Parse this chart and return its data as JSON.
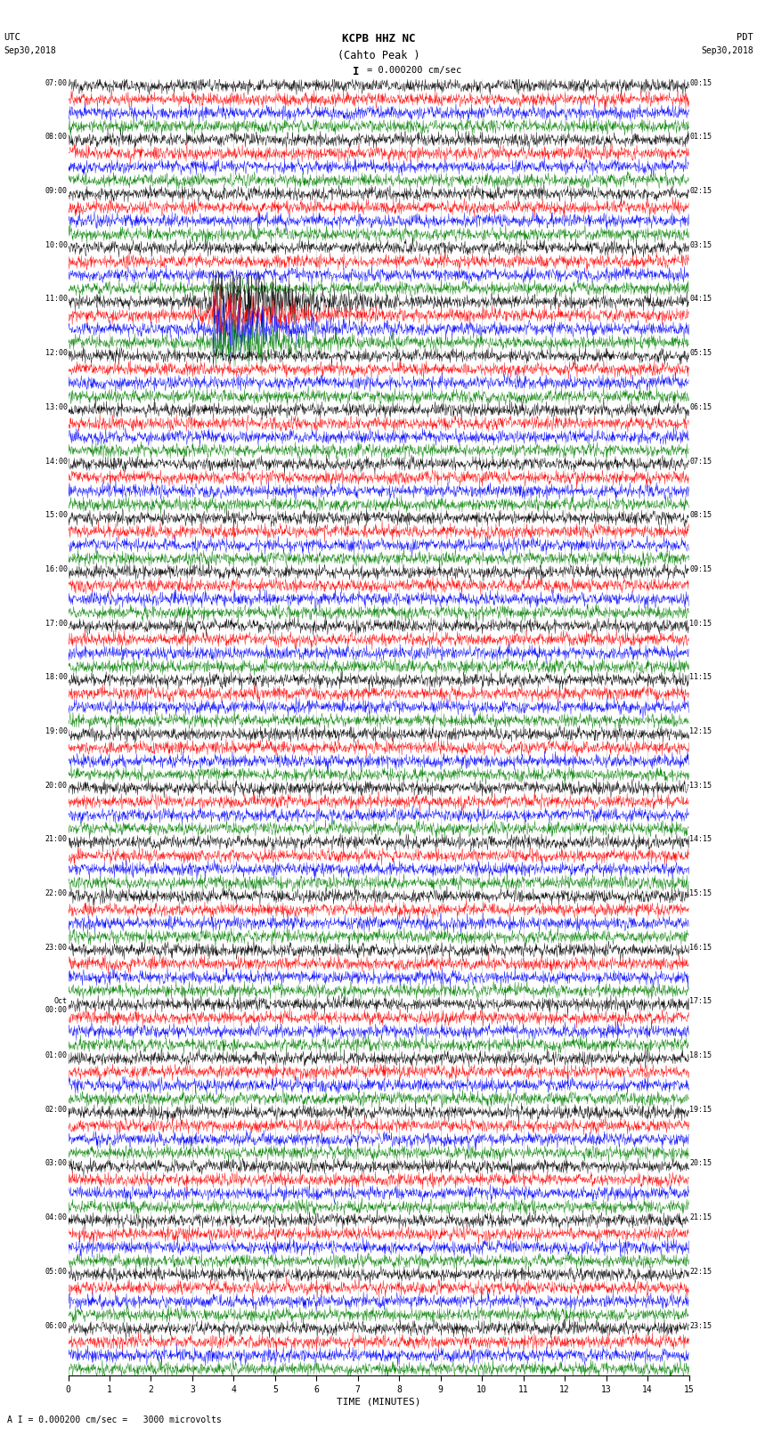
{
  "title_line1": "KCPB HHZ NC",
  "title_line2": "(Cahto Peak )",
  "scale_label": "I = 0.000200 cm/sec",
  "footer_label": "A I = 0.000200 cm/sec =   3000 microvolts",
  "xlabel": "TIME (MINUTES)",
  "left_times": [
    "07:00",
    "08:00",
    "09:00",
    "10:00",
    "11:00",
    "12:00",
    "13:00",
    "14:00",
    "15:00",
    "16:00",
    "17:00",
    "18:00",
    "19:00",
    "20:00",
    "21:00",
    "22:00",
    "23:00",
    "Oct\n00:00",
    "01:00",
    "02:00",
    "03:00",
    "04:00",
    "05:00",
    "06:00"
  ],
  "right_times": [
    "00:15",
    "01:15",
    "02:15",
    "03:15",
    "04:15",
    "05:15",
    "06:15",
    "07:15",
    "08:15",
    "09:15",
    "10:15",
    "11:15",
    "12:15",
    "13:15",
    "14:15",
    "15:15",
    "16:15",
    "17:15",
    "18:15",
    "19:15",
    "20:15",
    "21:15",
    "22:15",
    "23:15"
  ],
  "num_rows": 24,
  "traces_per_row": 4,
  "colors": [
    "black",
    "red",
    "blue",
    "green"
  ],
  "bg_color": "white",
  "fig_width": 8.5,
  "fig_height": 16.13,
  "dpi": 100,
  "earthquake_row": 4,
  "earthquake_sub_row": 0
}
